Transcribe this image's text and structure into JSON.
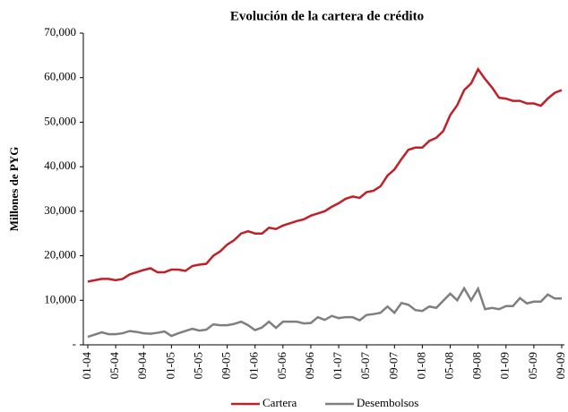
{
  "chart_data": {
    "type": "line",
    "title": "Evolución de la cartera de crédito",
    "y_label": "Millones de PYG",
    "categories": [
      "01-04",
      null,
      null,
      null,
      "05-04",
      null,
      null,
      null,
      "09-04",
      null,
      null,
      null,
      "01-05",
      null,
      null,
      null,
      "05-05",
      null,
      null,
      null,
      "09-05",
      null,
      null,
      null,
      "01-06",
      null,
      null,
      null,
      "05-06",
      null,
      null,
      null,
      "09-06",
      null,
      null,
      null,
      "01-07",
      null,
      null,
      null,
      "05-07",
      null,
      null,
      null,
      "09-07",
      null,
      null,
      null,
      "01-08",
      null,
      null,
      null,
      "05-08",
      null,
      null,
      null,
      "09-08",
      null,
      null,
      null,
      "01-09",
      null,
      null,
      null,
      "05-09",
      null,
      null,
      null,
      "09-09"
    ],
    "series": [
      {
        "name": "Cartera",
        "color": "#c0202a",
        "values": [
          14200,
          14500,
          14800,
          14800,
          14500,
          14800,
          15800,
          16300,
          16800,
          17200,
          16300,
          16300,
          16900,
          16900,
          16600,
          17700,
          18000,
          18200,
          20000,
          21000,
          22500,
          23500,
          25000,
          25500,
          25000,
          25000,
          26300,
          26000,
          26800,
          27300,
          27800,
          28200,
          29000,
          29500,
          30000,
          31000,
          31800,
          32800,
          33300,
          33000,
          34300,
          34600,
          35600,
          38000,
          39400,
          41700,
          43800,
          44300,
          44300,
          45800,
          46500,
          48000,
          51600,
          53800,
          57200,
          58700,
          61900,
          59700,
          57800,
          55500,
          55300,
          54800,
          54800,
          54200,
          54200,
          53700,
          55300,
          56600,
          57200
        ]
      },
      {
        "name": "Desembolsos",
        "color": "#7f7f7f",
        "values": [
          1800,
          2300,
          2800,
          2400,
          2400,
          2600,
          3100,
          2900,
          2600,
          2500,
          2700,
          3000,
          2000,
          2600,
          3100,
          3600,
          3200,
          3400,
          4600,
          4400,
          4400,
          4700,
          5200,
          4400,
          3300,
          3900,
          5200,
          3800,
          5200,
          5200,
          5200,
          4800,
          4900,
          6200,
          5600,
          6500,
          6000,
          6200,
          6200,
          5500,
          6700,
          6900,
          7200,
          8600,
          7200,
          9400,
          9000,
          7800,
          7600,
          8600,
          8300,
          9900,
          11500,
          10000,
          12700,
          10000,
          12600,
          8000,
          8300,
          8000,
          8700,
          8700,
          10500,
          9300,
          9700,
          9700,
          11300,
          10400,
          10400
        ]
      }
    ],
    "ylim": [
      0,
      70000
    ],
    "yticks": [
      {
        "value": 0,
        "label": "-"
      },
      {
        "value": 10000,
        "label": "10,000"
      },
      {
        "value": 20000,
        "label": "20,000"
      },
      {
        "value": 30000,
        "label": "30,000"
      },
      {
        "value": 40000,
        "label": "40,000"
      },
      {
        "value": 50000,
        "label": "50,000"
      },
      {
        "value": 60000,
        "label": "60,000"
      },
      {
        "value": 70000,
        "label": "70,000"
      }
    ],
    "grid": false,
    "legend": "bottom"
  }
}
